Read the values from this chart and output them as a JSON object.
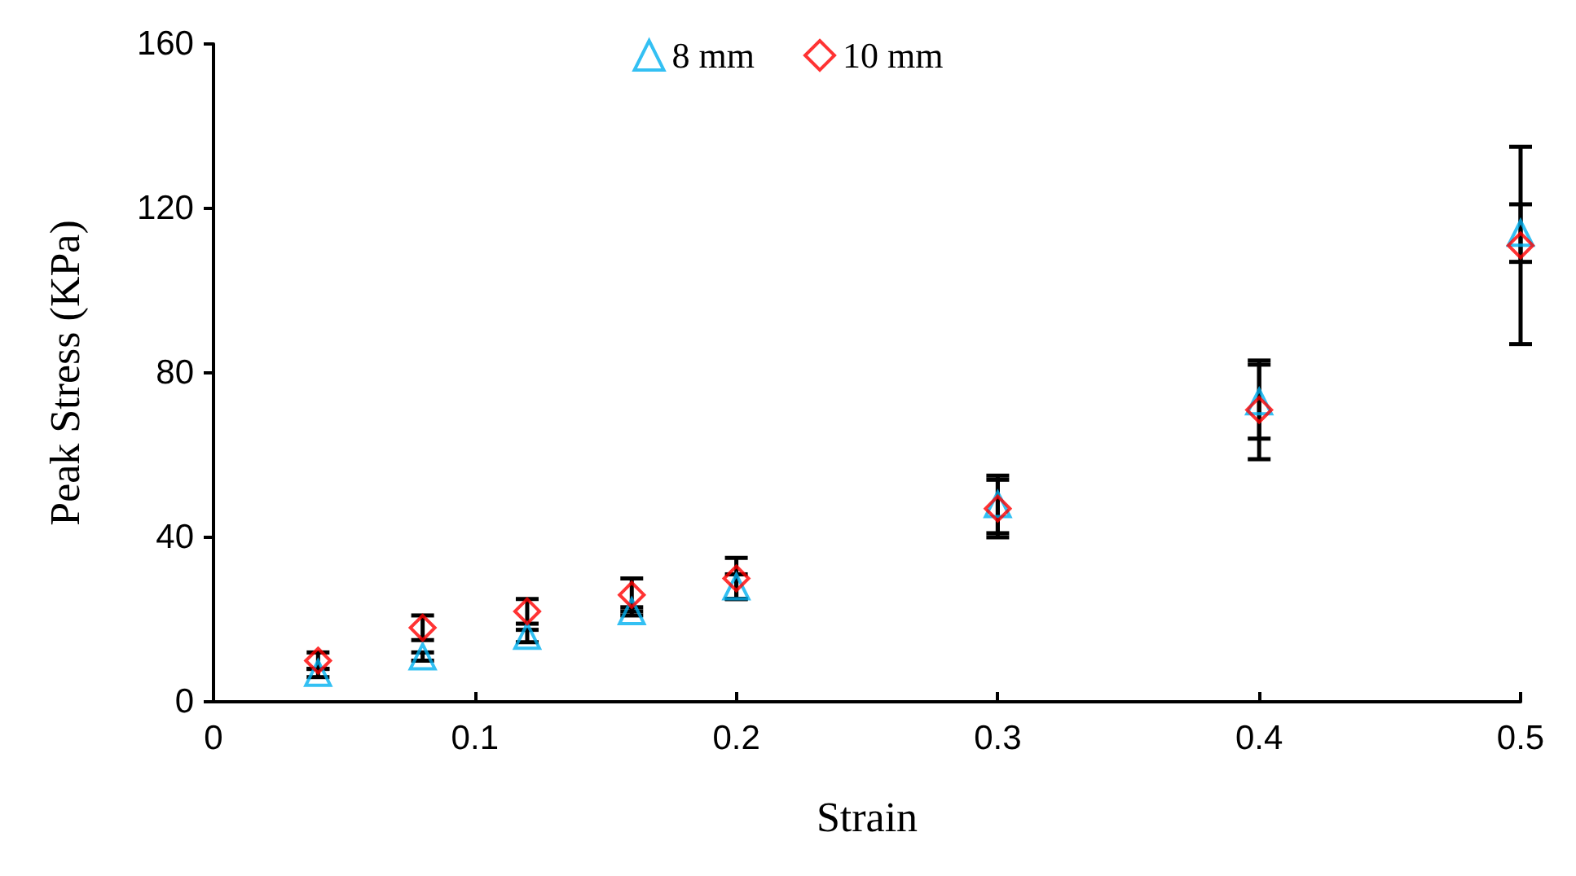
{
  "chart_data": {
    "type": "scatter",
    "xlabel": "Strain",
    "ylabel": "Peak Stress (KPa)",
    "x": [
      0.04,
      0.08,
      0.12,
      0.16,
      0.2,
      0.3,
      0.4,
      0.5
    ],
    "series": [
      {
        "name": "8 mm",
        "color": "#00b0f0",
        "marker": "triangle",
        "values": [
          7,
          11,
          16,
          22,
          28,
          48,
          73,
          114
        ],
        "errors": [
          1,
          1,
          1.5,
          1,
          3,
          7,
          9,
          7
        ]
      },
      {
        "name": "10 mm",
        "color": "#ff0000",
        "marker": "diamond",
        "values": [
          10,
          18,
          22,
          26,
          30,
          47,
          71,
          111
        ],
        "errors": [
          2,
          3,
          3,
          4,
          5,
          7,
          12,
          24
        ]
      }
    ],
    "xlim": [
      0,
      0.5
    ],
    "xticks": [
      0,
      0.1,
      0.2,
      0.3,
      0.4,
      0.5
    ],
    "ylim": [
      0,
      160
    ],
    "yticks": [
      0,
      40,
      80,
      120,
      160
    ],
    "grid": false,
    "legend": "top"
  }
}
